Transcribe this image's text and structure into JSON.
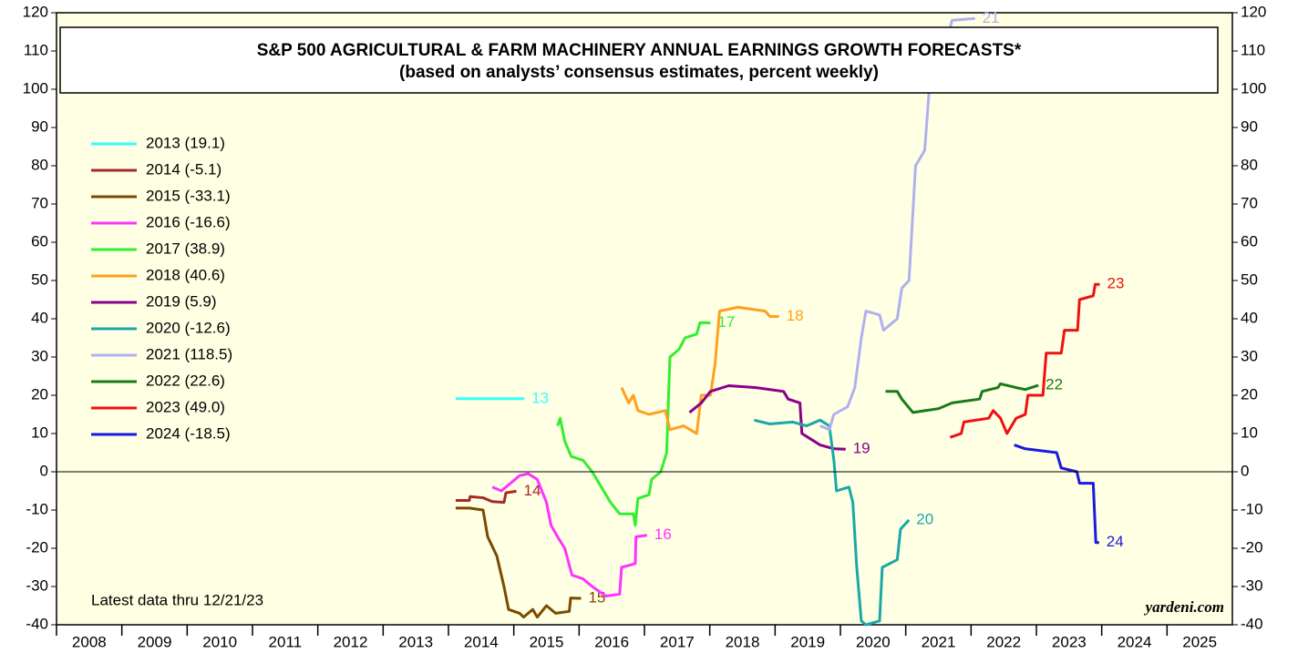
{
  "chart_data": {
    "type": "line",
    "title": "S&P 500 AGRICULTURAL & FARM MACHINERY ANNUAL EARNINGS GROWTH FORECASTS*",
    "subtitle": "(based on analysts’ consensus estimates, percent weekly)",
    "annotations": [
      "Latest data thru  12/21/23",
      "yardeni.com"
    ],
    "xlim": [
      2008,
      2026
    ],
    "xticks": [
      {
        "value": 2008.5,
        "label": "2008"
      },
      {
        "value": 2009.5,
        "label": "2009"
      },
      {
        "value": 2010.5,
        "label": "2010"
      },
      {
        "value": 2011.5,
        "label": "2011"
      },
      {
        "value": 2012.5,
        "label": "2012"
      },
      {
        "value": 2013.5,
        "label": "2013"
      },
      {
        "value": 2014.5,
        "label": "2014"
      },
      {
        "value": 2015.5,
        "label": "2015"
      },
      {
        "value": 2016.5,
        "label": "2016"
      },
      {
        "value": 2017.5,
        "label": "2017"
      },
      {
        "value": 2018.5,
        "label": "2018"
      },
      {
        "value": 2019.5,
        "label": "2019"
      },
      {
        "value": 2020.5,
        "label": "2020"
      },
      {
        "value": 2021.5,
        "label": "2021"
      },
      {
        "value": 2022.5,
        "label": "2022"
      },
      {
        "value": 2023.5,
        "label": "2023"
      },
      {
        "value": 2024.5,
        "label": "2024"
      },
      {
        "value": 2025.5,
        "label": "2025"
      }
    ],
    "ylim": [
      -40,
      120
    ],
    "yticks": [
      -40,
      -30,
      -20,
      -10,
      0,
      10,
      20,
      30,
      40,
      50,
      60,
      70,
      80,
      90,
      100,
      110,
      120
    ],
    "legend": "upper left",
    "series": [
      {
        "name": "2013 (19.1)",
        "label": "13",
        "color": "#33ffff",
        "x": [
          2014.11,
          2015.16
        ],
        "values": [
          19.1,
          19.1
        ]
      },
      {
        "name": "2014 (-5.1)",
        "label": "14",
        "color": "#a52a2a",
        "x": [
          2014.11,
          2014.32,
          2014.33,
          2014.53,
          2014.67,
          2014.85,
          2014.88,
          2015.04
        ],
        "values": [
          -7.5,
          -7.5,
          -6.5,
          -6.8,
          -7.8,
          -8,
          -5.5,
          -5.1
        ]
      },
      {
        "name": "2015 (-33.1)",
        "label": "15",
        "color": "#7b4a00",
        "x": [
          2014.11,
          2014.32,
          2014.53,
          2014.6,
          2014.74,
          2014.85,
          2014.92,
          2015.09,
          2015.15,
          2015.29,
          2015.36,
          2015.5,
          2015.64,
          2015.85,
          2015.87,
          2016.03
        ],
        "values": [
          -9.5,
          -9.5,
          -10,
          -17,
          -22,
          -30,
          -36,
          -37,
          -38,
          -36,
          -38,
          -35,
          -37,
          -36.5,
          -33,
          -33.1
        ]
      },
      {
        "name": "2016 (-16.6)",
        "label": "16",
        "color": "#ff33ff",
        "x": [
          2014.67,
          2014.81,
          2014.95,
          2015.09,
          2015.22,
          2015.36,
          2015.5,
          2015.57,
          2015.67,
          2015.78,
          2015.89,
          2016.06,
          2016.2,
          2016.41,
          2016.62,
          2016.65,
          2016.86,
          2016.87,
          2017.04
        ],
        "values": [
          -4,
          -5,
          -3,
          -1,
          -0.5,
          -2,
          -8,
          -14,
          -17,
          -20,
          -27,
          -28,
          -30,
          -32.5,
          -32,
          -25,
          -24,
          -17,
          -16.6
        ]
      },
      {
        "name": "2017 (38.9)",
        "label": "17",
        "color": "#33ee33",
        "x": [
          2015.67,
          2015.71,
          2015.78,
          2015.88,
          2016.06,
          2016.2,
          2016.34,
          2016.48,
          2016.62,
          2016.83,
          2016.86,
          2016.9,
          2017.07,
          2017.11,
          2017.25,
          2017.34,
          2017.39,
          2017.53,
          2017.62,
          2017.8,
          2017.85,
          2018.01
        ],
        "values": [
          12,
          14,
          8,
          4,
          3,
          0,
          -4,
          -8,
          -11,
          -11,
          -14,
          -7,
          -6,
          -2,
          0,
          5,
          30,
          32,
          35,
          36,
          39,
          38.9
        ]
      },
      {
        "name": "2018 (40.6)",
        "label": "18",
        "color": "#ffa020",
        "x": [
          2016.65,
          2016.76,
          2016.83,
          2016.9,
          2017.07,
          2017.32,
          2017.39,
          2017.6,
          2017.8,
          2017.87,
          2018.01,
          2018.08,
          2018.15,
          2018.43,
          2018.85,
          2018.92,
          2019.06
        ],
        "values": [
          22,
          18,
          20,
          16,
          15,
          16,
          11,
          12,
          10,
          20,
          20,
          28,
          42,
          43,
          42,
          40.6,
          40.6
        ]
      },
      {
        "name": "2019 (5.9)",
        "label": "19",
        "color": "#8b008b",
        "x": [
          2017.69,
          2017.87,
          2018.01,
          2018.29,
          2018.71,
          2019.13,
          2019.2,
          2019.38,
          2019.41,
          2019.69,
          2019.9,
          2020.08
        ],
        "values": [
          15.5,
          18,
          21,
          22.5,
          22,
          21,
          19,
          18,
          10,
          7,
          6,
          5.9
        ]
      },
      {
        "name": "2020 (-12.6)",
        "label": "20",
        "color": "#1aa8a8",
        "x": [
          2018.68,
          2018.92,
          2019.27,
          2019.48,
          2019.69,
          2019.83,
          2019.9,
          2019.94,
          2020.13,
          2020.19,
          2020.25,
          2020.32,
          2020.39,
          2020.6,
          2020.64,
          2020.87,
          2020.92,
          2021.05
        ],
        "values": [
          13.5,
          12.5,
          13,
          12,
          13.5,
          12,
          3,
          -5,
          -4,
          -8,
          -25,
          -39,
          -40,
          -39,
          -25,
          -23,
          -15,
          -12.6
        ]
      },
      {
        "name": "2021 (118.5)",
        "label": "21",
        "color": "#b0b0f0",
        "x": [
          2019.69,
          2019.83,
          2019.9,
          2020.11,
          2020.22,
          2020.32,
          2020.39,
          2020.6,
          2020.66,
          2020.87,
          2020.94,
          2021.05,
          2021.15,
          2021.29,
          2021.36,
          2021.47,
          2021.61,
          2021.71,
          2022.06
        ],
        "values": [
          12,
          11,
          15,
          17,
          22,
          35,
          42,
          41,
          37,
          40,
          48,
          50,
          80,
          84,
          100,
          107,
          112,
          118,
          118.5
        ]
      },
      {
        "name": "2022 (22.6)",
        "label": "22",
        "color": "#1a7a1a",
        "x": [
          2020.69,
          2020.87,
          2020.94,
          2021.11,
          2021.5,
          2021.71,
          2022.13,
          2022.17,
          2022.41,
          2022.45,
          2022.69,
          2022.83,
          2023.03
        ],
        "values": [
          21,
          21,
          19,
          15.5,
          16.5,
          18,
          19,
          21,
          22,
          23,
          22,
          21.5,
          22.6
        ]
      },
      {
        "name": "2023 (49.0)",
        "label": "23",
        "color": "#ee1111",
        "x": [
          2021.68,
          2021.85,
          2021.89,
          2022.27,
          2022.34,
          2022.45,
          2022.55,
          2022.69,
          2022.83,
          2022.87,
          2023.1,
          2023.15,
          2023.38,
          2023.43,
          2023.63,
          2023.66,
          2023.87,
          2023.9,
          2023.97
        ],
        "values": [
          9,
          10,
          13,
          14,
          16,
          14,
          10,
          14,
          15,
          20,
          20,
          31,
          31,
          37,
          37,
          45,
          46,
          49,
          49
        ]
      },
      {
        "name": "2024 (-18.5)",
        "label": "24",
        "color": "#1a1ae0",
        "x": [
          2022.66,
          2022.83,
          2023.31,
          2023.38,
          2023.62,
          2023.66,
          2023.87,
          2023.91,
          2023.96
        ],
        "values": [
          7,
          6,
          5,
          1,
          0,
          -3,
          -3,
          -18.5,
          -18.5
        ]
      }
    ]
  }
}
